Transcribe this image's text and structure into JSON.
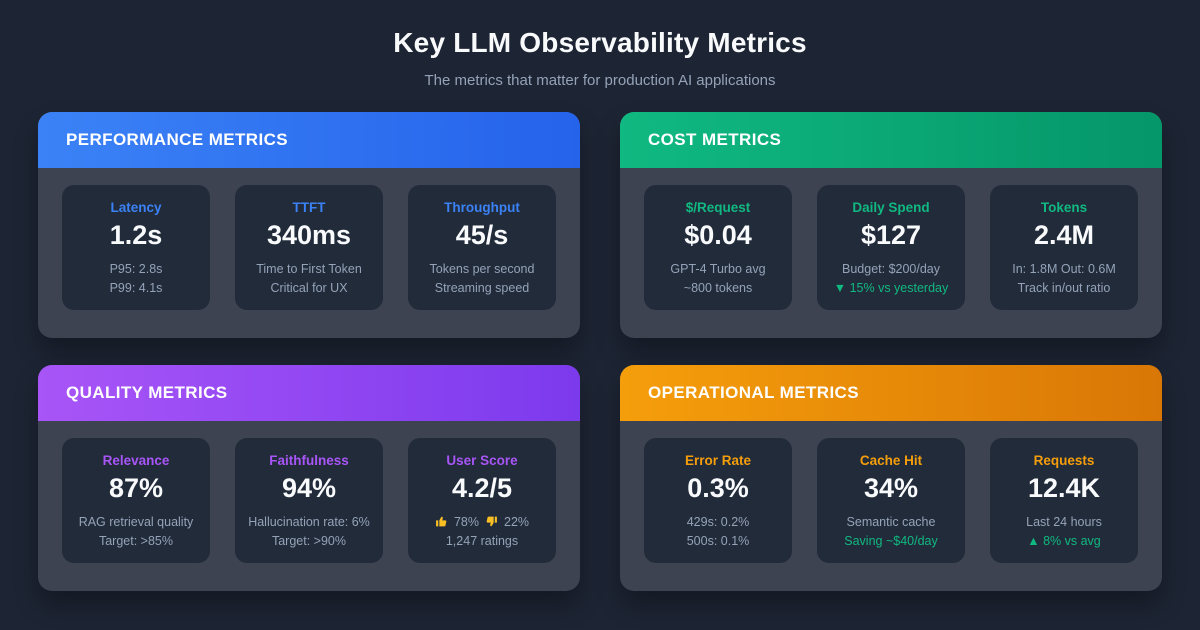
{
  "page": {
    "title": "Key LLM Observability Metrics",
    "subtitle": "The metrics that matter for production AI applications"
  },
  "colors": {
    "background": "#1d2433",
    "card_body": "#3d4351",
    "tile": "#222b3a",
    "subtext": "#94a3b8",
    "value_text": "#f8fafc",
    "trend_green": "#10b981",
    "thumb_gold": "#fbbf24"
  },
  "cards": [
    {
      "id": "performance",
      "title": "PERFORMANCE METRICS",
      "accent": "#3b82f6",
      "header_gradient": [
        "#3b82f6",
        "#2563eb"
      ],
      "tiles": [
        {
          "label": "Latency",
          "value": "1.2s",
          "lines": [
            {
              "text": "P95: 2.8s"
            },
            {
              "text": "P99: 4.1s"
            }
          ]
        },
        {
          "label": "TTFT",
          "value": "340ms",
          "lines": [
            {
              "text": "Time to First Token"
            },
            {
              "text": "Critical for UX"
            }
          ]
        },
        {
          "label": "Throughput",
          "value": "45/s",
          "lines": [
            {
              "text": "Tokens per second"
            },
            {
              "text": "Streaming speed"
            }
          ]
        }
      ]
    },
    {
      "id": "cost",
      "title": "COST METRICS",
      "accent": "#10b981",
      "header_gradient": [
        "#10b981",
        "#059669"
      ],
      "tiles": [
        {
          "label": "$/Request",
          "value": "$0.04",
          "lines": [
            {
              "text": "GPT-4 Turbo avg"
            },
            {
              "text": "~800 tokens"
            }
          ]
        },
        {
          "label": "Daily Spend",
          "value": "$127",
          "lines": [
            {
              "text": "Budget: $200/day"
            },
            {
              "text": "▼ 15% vs yesterday",
              "color": "#10b981"
            }
          ]
        },
        {
          "label": "Tokens",
          "value": "2.4M",
          "lines": [
            {
              "text": "In: 1.8M Out: 0.6M"
            },
            {
              "text": "Track in/out ratio"
            }
          ]
        }
      ]
    },
    {
      "id": "quality",
      "title": "QUALITY METRICS",
      "accent": "#a855f7",
      "header_gradient": [
        "#a855f7",
        "#7c3aed"
      ],
      "tiles": [
        {
          "label": "Relevance",
          "value": "87%",
          "lines": [
            {
              "text": "RAG retrieval quality"
            },
            {
              "text": "Target: >85%"
            }
          ]
        },
        {
          "label": "Faithfulness",
          "value": "94%",
          "lines": [
            {
              "text": "Hallucination rate: 6%"
            },
            {
              "text": "Target: >90%"
            }
          ]
        },
        {
          "label": "User Score",
          "value": "4.2/5",
          "lines": [
            {
              "segments": [
                {
                  "icon": "thumbs-up-icon"
                },
                {
                  "text": "78%"
                },
                {
                  "icon": "thumbs-down-icon"
                },
                {
                  "text": "22%"
                }
              ]
            },
            {
              "text": "1,247 ratings"
            }
          ]
        }
      ]
    },
    {
      "id": "operational",
      "title": "OPERATIONAL METRICS",
      "accent": "#f59e0b",
      "header_gradient": [
        "#f59e0b",
        "#d97706"
      ],
      "tiles": [
        {
          "label": "Error Rate",
          "value": "0.3%",
          "lines": [
            {
              "text": "429s: 0.2%"
            },
            {
              "text": "500s: 0.1%"
            }
          ]
        },
        {
          "label": "Cache Hit",
          "value": "34%",
          "lines": [
            {
              "text": "Semantic cache"
            },
            {
              "text": "Saving ~$40/day",
              "color": "#10b981"
            }
          ]
        },
        {
          "label": "Requests",
          "value": "12.4K",
          "lines": [
            {
              "text": "Last 24 hours"
            },
            {
              "text": "▲ 8% vs avg",
              "color": "#10b981"
            }
          ]
        }
      ]
    }
  ]
}
